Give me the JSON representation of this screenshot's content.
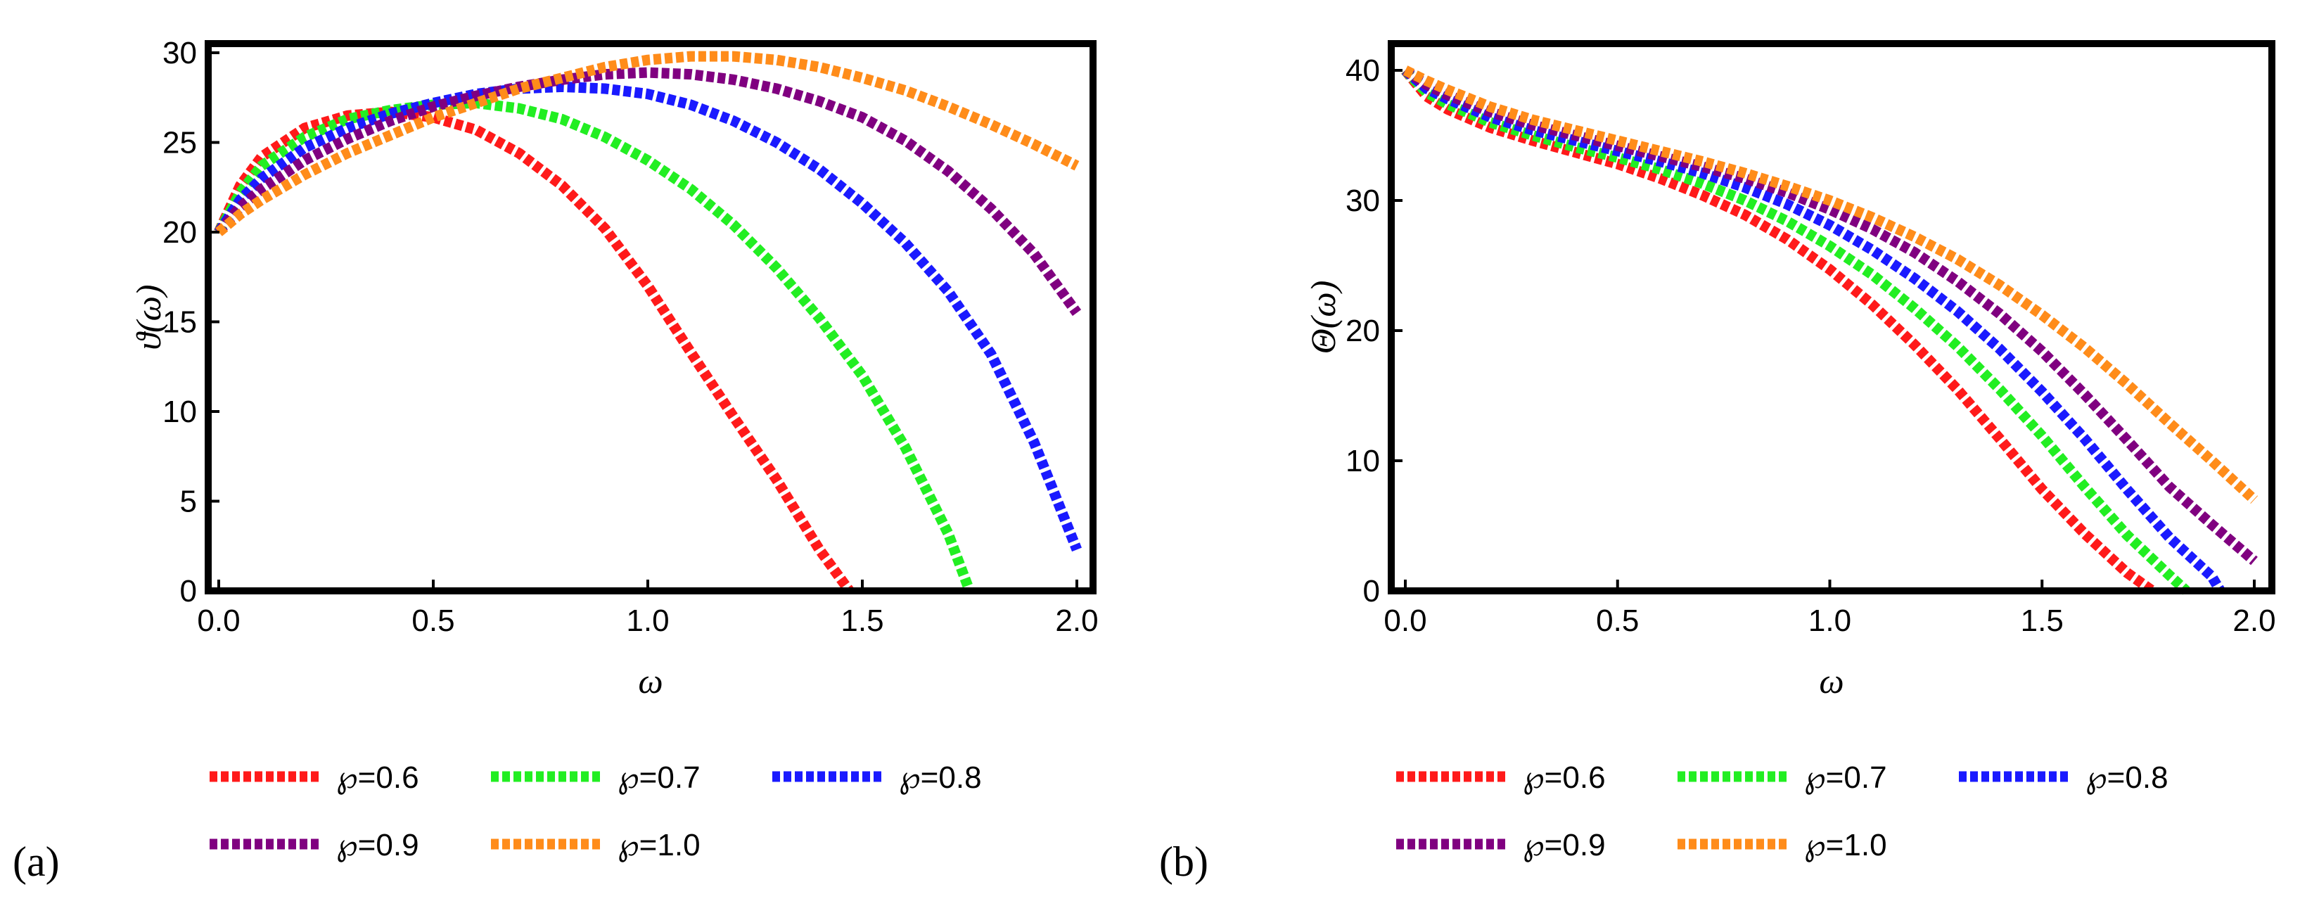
{
  "chart_data": [
    {
      "panel": "(a)",
      "type": "line",
      "title": "",
      "xlabel": "ω",
      "ylabel": "ϑ(ω)",
      "xlim": [
        0,
        2.0
      ],
      "ylim": [
        0,
        30
      ],
      "xticks": [
        "0.0",
        "0.5",
        "1.0",
        "1.5",
        "2.0"
      ],
      "xtick_values": [
        0,
        0.5,
        1.0,
        1.5,
        2.0
      ],
      "yticks": [
        "0",
        "5",
        "10",
        "15",
        "20",
        "25",
        "30"
      ],
      "ytick_values": [
        0,
        5,
        10,
        15,
        20,
        25,
        30
      ],
      "grid": false,
      "legend_position": "bottom",
      "series": [
        {
          "name": "℘=0.6",
          "color": "#ff1a1a",
          "x": [
            0,
            0.05,
            0.1,
            0.2,
            0.3,
            0.4,
            0.5,
            0.6,
            0.7,
            0.8,
            0.9,
            1.0,
            1.1,
            1.2,
            1.3,
            1.4,
            1.47
          ],
          "y": [
            20,
            22.6,
            24.2,
            25.8,
            26.5,
            26.7,
            26.4,
            25.7,
            24.4,
            22.6,
            20.2,
            17.0,
            13.3,
            9.7,
            6.2,
            2.3,
            0
          ]
        },
        {
          "name": "℘=0.7",
          "color": "#22ee22",
          "x": [
            0,
            0.05,
            0.1,
            0.2,
            0.3,
            0.4,
            0.5,
            0.6,
            0.7,
            0.8,
            0.9,
            1.0,
            1.1,
            1.2,
            1.3,
            1.4,
            1.5,
            1.6,
            1.7,
            1.75
          ],
          "y": [
            20,
            22.2,
            23.7,
            25.3,
            26.3,
            26.8,
            27.1,
            27.2,
            26.9,
            26.3,
            25.3,
            24.0,
            22.4,
            20.4,
            18.0,
            15.2,
            12.0,
            8.0,
            3.2,
            0
          ]
        },
        {
          "name": "℘=0.8",
          "color": "#1a1aff",
          "x": [
            0,
            0.05,
            0.1,
            0.2,
            0.3,
            0.4,
            0.5,
            0.6,
            0.7,
            0.8,
            0.9,
            1.0,
            1.1,
            1.2,
            1.3,
            1.4,
            1.5,
            1.6,
            1.7,
            1.8,
            1.9,
            2.0
          ],
          "y": [
            20,
            21.8,
            23.0,
            24.7,
            25.8,
            26.6,
            27.2,
            27.7,
            28.0,
            28.1,
            28.0,
            27.7,
            27.1,
            26.2,
            25.0,
            23.5,
            21.6,
            19.4,
            16.7,
            13.2,
            8.3,
            2.3
          ]
        },
        {
          "name": "℘=0.9",
          "color": "#800080",
          "x": [
            0,
            0.05,
            0.1,
            0.2,
            0.3,
            0.4,
            0.5,
            0.6,
            0.7,
            0.8,
            0.9,
            1.0,
            1.1,
            1.2,
            1.3,
            1.4,
            1.5,
            1.6,
            1.7,
            1.8,
            1.9,
            2.0
          ],
          "y": [
            20,
            21.4,
            22.4,
            24.0,
            25.2,
            26.2,
            27.0,
            27.6,
            28.1,
            28.5,
            28.8,
            28.9,
            28.8,
            28.5,
            28.0,
            27.3,
            26.4,
            25.1,
            23.4,
            21.3,
            18.8,
            15.5
          ]
        },
        {
          "name": "℘=1.0",
          "color": "#ff8c1a",
          "x": [
            0,
            0.05,
            0.1,
            0.2,
            0.3,
            0.4,
            0.5,
            0.6,
            0.7,
            0.8,
            0.9,
            1.0,
            1.1,
            1.2,
            1.3,
            1.4,
            1.5,
            1.6,
            1.7,
            1.8,
            1.9,
            2.0
          ],
          "y": [
            20,
            21.0,
            21.8,
            23.2,
            24.4,
            25.4,
            26.4,
            27.2,
            28.0,
            28.6,
            29.2,
            29.6,
            29.8,
            29.8,
            29.6,
            29.2,
            28.6,
            27.9,
            27.0,
            26.0,
            24.9,
            23.7
          ]
        }
      ]
    },
    {
      "panel": "(b)",
      "type": "line",
      "title": "",
      "xlabel": "ω",
      "ylabel": "Θ(ω)",
      "xlim": [
        0,
        2.0
      ],
      "ylim": [
        0,
        40
      ],
      "xticks": [
        "0.0",
        "0.5",
        "1.0",
        "1.5",
        "2.0"
      ],
      "xtick_values": [
        0,
        0.5,
        1.0,
        1.5,
        2.0
      ],
      "yticks": [
        "0",
        "10",
        "20",
        "30",
        "40"
      ],
      "ytick_values": [
        0,
        10,
        20,
        30,
        40
      ],
      "grid": false,
      "legend_position": "bottom",
      "series": [
        {
          "name": "℘=0.6",
          "color": "#ff1a1a",
          "x": [
            0,
            0.05,
            0.1,
            0.2,
            0.3,
            0.4,
            0.5,
            0.6,
            0.7,
            0.8,
            0.9,
            1.0,
            1.1,
            1.2,
            1.3,
            1.4,
            1.5,
            1.6,
            1.7,
            1.76
          ],
          "y": [
            40,
            38.0,
            37.0,
            35.6,
            34.6,
            33.7,
            32.8,
            31.7,
            30.4,
            28.9,
            27.0,
            24.7,
            22.0,
            18.9,
            15.5,
            11.7,
            7.8,
            4.4,
            1.4,
            0
          ]
        },
        {
          "name": "℘=0.7",
          "color": "#22ee22",
          "x": [
            0,
            0.05,
            0.1,
            0.2,
            0.3,
            0.4,
            0.5,
            0.6,
            0.7,
            0.8,
            0.9,
            1.0,
            1.1,
            1.2,
            1.3,
            1.4,
            1.5,
            1.6,
            1.7,
            1.8,
            1.84
          ],
          "y": [
            40,
            38.3,
            37.4,
            36.0,
            35.0,
            34.1,
            33.3,
            32.4,
            31.3,
            30.0,
            28.4,
            26.5,
            24.3,
            21.7,
            18.8,
            15.5,
            11.9,
            8.0,
            4.3,
            1.2,
            0
          ]
        },
        {
          "name": "℘=0.8",
          "color": "#1a1aff",
          "x": [
            0,
            0.05,
            0.1,
            0.2,
            0.3,
            0.4,
            0.5,
            0.6,
            0.7,
            0.8,
            0.9,
            1.0,
            1.1,
            1.2,
            1.3,
            1.4,
            1.5,
            1.6,
            1.7,
            1.8,
            1.9,
            1.92
          ],
          "y": [
            40,
            38.6,
            37.8,
            36.4,
            35.4,
            34.6,
            33.8,
            33.0,
            32.1,
            31.0,
            29.7,
            28.1,
            26.2,
            24.0,
            21.5,
            18.6,
            15.3,
            11.7,
            7.8,
            4.1,
            1.1,
            0
          ]
        },
        {
          "name": "℘=0.9",
          "color": "#800080",
          "x": [
            0,
            0.05,
            0.1,
            0.2,
            0.3,
            0.4,
            0.5,
            0.6,
            0.7,
            0.8,
            0.9,
            1.0,
            1.1,
            1.2,
            1.3,
            1.4,
            1.5,
            1.6,
            1.7,
            1.8,
            1.9,
            2.0
          ],
          "y": [
            40,
            38.9,
            38.1,
            36.8,
            35.8,
            35.0,
            34.2,
            33.4,
            32.6,
            31.7,
            30.6,
            29.3,
            27.8,
            26.0,
            23.8,
            21.3,
            18.4,
            15.1,
            11.6,
            8.0,
            5.1,
            2.3
          ]
        },
        {
          "name": "℘=1.0",
          "color": "#ff8c1a",
          "x": [
            0,
            0.05,
            0.1,
            0.2,
            0.3,
            0.4,
            0.5,
            0.6,
            0.7,
            0.8,
            0.9,
            1.0,
            1.1,
            1.2,
            1.3,
            1.4,
            1.5,
            1.6,
            1.7,
            1.8,
            1.9,
            2.0
          ],
          "y": [
            40,
            39.2,
            38.5,
            37.2,
            36.2,
            35.4,
            34.6,
            33.8,
            33.0,
            32.1,
            31.1,
            30.0,
            28.7,
            27.2,
            25.5,
            23.5,
            21.2,
            18.7,
            15.9,
            12.9,
            10.0,
            7.0
          ]
        }
      ]
    }
  ]
}
